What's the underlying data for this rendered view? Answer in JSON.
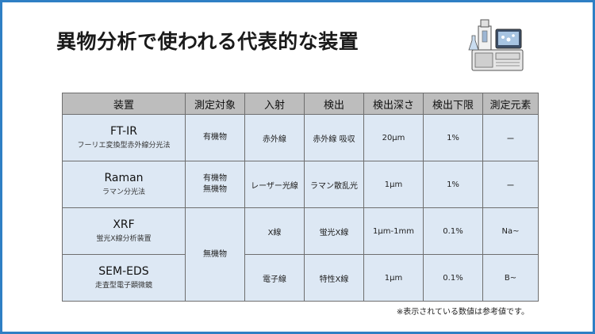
{
  "title": "異物分析で使われる代表的な装置",
  "headers": [
    "装置",
    "測定対象",
    "入射",
    "検出",
    "検出深さ",
    "検出下限",
    "測定元素"
  ],
  "rows": [
    {
      "name": "FT-IR",
      "sub": "フーリエ変換型赤外線分光法",
      "target": [
        "有機物"
      ],
      "incident": "赤外線",
      "detection": "赤外線 吸収",
      "depth": "20μm",
      "limit": "1%",
      "element": "ー"
    },
    {
      "name": "Raman",
      "sub": "ラマン分光法",
      "target": [
        "有機物",
        "無機物"
      ],
      "incident": "レーザー光線",
      "detection": "ラマン散乱光",
      "depth": "1μm",
      "limit": "1%",
      "element": "ー"
    },
    {
      "name": "XRF",
      "sub": "蛍光X線分析装置",
      "target": [
        "無機物"
      ],
      "incident": "X線",
      "detection": "蛍光X線",
      "depth": "1μm-1mm",
      "limit": "0.1%",
      "element": "Na~"
    },
    {
      "name": "SEM-EDS",
      "sub": "走査型電子顕微鏡",
      "incident": "電子線",
      "detection": "特性X線",
      "depth": "1μm",
      "limit": "0.1%",
      "element": "B~"
    }
  ],
  "note": "※表示されている数値は参考値です。",
  "colors": {
    "border": "#2f7fc4",
    "header_bg": "#bdbdbd",
    "cell_bg": "#dde8f4"
  },
  "icons": {
    "device": "lab-instrument-illustration"
  }
}
